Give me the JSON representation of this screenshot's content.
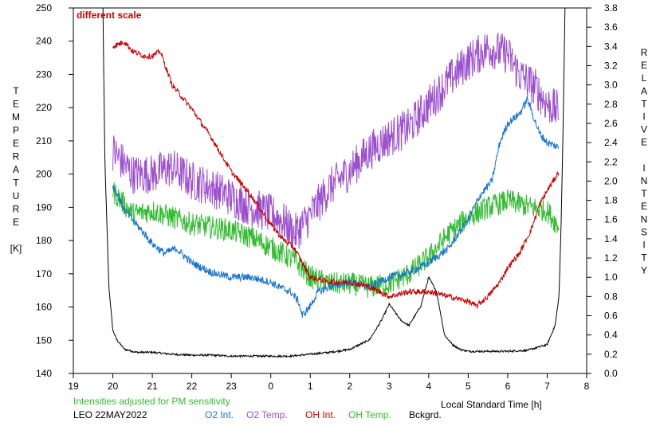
{
  "chart_data": {
    "type": "line",
    "annotation": "different scale",
    "footer": {
      "note": "Intensities adjusted for PM sensitivity",
      "station_date": "LEO 22MAY2022"
    },
    "xlabel": "Local Standard Time [h]",
    "x_ticks": [
      "19",
      "20",
      "21",
      "22",
      "23",
      "0",
      "1",
      "2",
      "3",
      "4",
      "5",
      "6",
      "7",
      "8"
    ],
    "xlim": [
      19,
      32
    ],
    "ylabel_left": [
      "T",
      "E",
      "M",
      "P",
      "E",
      "R",
      "A",
      "T",
      "U",
      "R",
      "E",
      "",
      "[K]"
    ],
    "ylim_left": [
      140,
      250
    ],
    "y_ticks_left": [
      "140",
      "150",
      "160",
      "170",
      "180",
      "190",
      "200",
      "210",
      "220",
      "230",
      "240",
      "250"
    ],
    "ylabel_right": [
      "R",
      "E",
      "L",
      "A",
      "T",
      "I",
      "V",
      "E",
      "",
      "I",
      "N",
      "T",
      "E",
      "N",
      "S",
      "I",
      "T",
      "Y"
    ],
    "ylim_right": [
      0.0,
      3.8
    ],
    "y_ticks_right": [
      "0.0",
      "0.2",
      "0.4",
      "0.6",
      "0.8",
      "1.0",
      "1.2",
      "1.4",
      "1.6",
      "1.8",
      "2.0",
      "2.2",
      "2.4",
      "2.6",
      "2.8",
      "3.0",
      "3.2",
      "3.4",
      "3.6",
      "3.8"
    ],
    "colors": {
      "o2_int": "#1874CD",
      "o2_temp": "#9B4FCF",
      "oh_int": "#CC0000",
      "oh_temp": "#33BB33",
      "bckgrd": "#000000",
      "annotation": "#CC0000",
      "note": "#33BB33"
    },
    "series": [
      {
        "name": "O2 Int.",
        "key": "o2_int",
        "axis": "right",
        "noise": 0.04,
        "x": [
          20.0,
          20.3,
          20.6,
          20.8,
          21.0,
          21.3,
          21.6,
          22.0,
          22.5,
          23.0,
          23.5,
          24.0,
          24.2,
          24.5,
          24.7,
          24.8,
          25.0,
          25.2,
          25.5,
          26.0,
          26.5,
          27.0,
          27.5,
          28.0,
          28.5,
          29.0,
          29.3,
          29.6,
          29.8,
          30.0,
          30.3,
          30.5,
          30.8,
          31.0,
          31.3
        ],
        "y": [
          1.95,
          1.7,
          1.55,
          1.45,
          1.35,
          1.25,
          1.3,
          1.15,
          1.05,
          1.0,
          1.0,
          0.95,
          0.9,
          0.85,
          0.75,
          0.6,
          0.7,
          0.85,
          0.9,
          0.95,
          0.9,
          1.0,
          1.05,
          1.15,
          1.3,
          1.6,
          1.85,
          2.0,
          2.4,
          2.6,
          2.7,
          2.85,
          2.5,
          2.4,
          2.35
        ]
      },
      {
        "name": "O2 Temp.",
        "key": "o2_temp",
        "axis": "left",
        "noise": 6,
        "x": [
          20.0,
          20.5,
          21.0,
          21.5,
          22.0,
          22.5,
          23.0,
          23.5,
          24.0,
          24.3,
          24.6,
          24.9,
          25.2,
          25.5,
          26.0,
          26.5,
          27.0,
          27.5,
          28.0,
          28.5,
          29.0,
          29.5,
          30.0,
          30.3,
          30.7,
          31.0,
          31.3
        ],
        "y": [
          207,
          200,
          200,
          202,
          198,
          196,
          193,
          190,
          188,
          186,
          182,
          186,
          191,
          196,
          201,
          207,
          211,
          214,
          221,
          228,
          234,
          238,
          236,
          230,
          226,
          221,
          219
        ]
      },
      {
        "name": "OH Int.",
        "key": "oh_int",
        "axis": "right",
        "noise": 0.03,
        "x": [
          20.0,
          20.3,
          20.5,
          20.8,
          21.0,
          21.2,
          21.5,
          22.0,
          22.5,
          23.0,
          23.5,
          24.0,
          24.3,
          24.6,
          25.0,
          25.5,
          26.0,
          26.5,
          27.0,
          27.5,
          28.0,
          28.5,
          29.0,
          29.2,
          29.5,
          29.8,
          30.0,
          30.3,
          30.6,
          30.8,
          31.0,
          31.3
        ],
        "y": [
          3.4,
          3.45,
          3.35,
          3.3,
          3.3,
          3.35,
          3.0,
          2.75,
          2.45,
          2.1,
          1.85,
          1.55,
          1.4,
          1.3,
          1.0,
          0.95,
          0.95,
          0.9,
          0.8,
          0.85,
          0.85,
          0.8,
          0.75,
          0.7,
          0.8,
          0.95,
          1.1,
          1.25,
          1.5,
          1.75,
          1.9,
          2.1
        ]
      },
      {
        "name": "OH Temp.",
        "key": "oh_temp",
        "axis": "left",
        "noise": 3.5,
        "x": [
          20.0,
          20.5,
          21.0,
          21.5,
          22.0,
          22.5,
          23.0,
          23.5,
          24.0,
          24.3,
          24.6,
          25.0,
          25.5,
          26.0,
          26.5,
          27.0,
          27.5,
          28.0,
          28.5,
          29.0,
          29.5,
          30.0,
          30.3,
          30.6,
          31.0,
          31.3
        ],
        "y": [
          195,
          188,
          189,
          187,
          185,
          184,
          183,
          181,
          178,
          176,
          174,
          169,
          167,
          167,
          166,
          167,
          170,
          175,
          182,
          187,
          190,
          192,
          191,
          190,
          189,
          184
        ]
      },
      {
        "name": "Bckgrd.",
        "key": "bckgrd",
        "axis": "right",
        "noise": 0.01,
        "x": [
          19.75,
          19.8,
          19.9,
          20.0,
          20.1,
          20.3,
          20.6,
          21.0,
          21.5,
          22.0,
          22.5,
          23.0,
          23.5,
          24.0,
          24.5,
          25.0,
          25.5,
          26.0,
          26.5,
          26.8,
          27.0,
          27.3,
          27.5,
          27.8,
          28.0,
          28.2,
          28.4,
          28.6,
          28.8,
          29.0,
          29.5,
          30.0,
          30.5,
          31.0,
          31.2,
          31.3,
          31.35,
          31.4,
          31.45
        ],
        "y": [
          3.8,
          2.2,
          0.9,
          0.45,
          0.35,
          0.25,
          0.22,
          0.22,
          0.2,
          0.19,
          0.19,
          0.18,
          0.18,
          0.18,
          0.18,
          0.2,
          0.22,
          0.25,
          0.35,
          0.55,
          0.72,
          0.55,
          0.5,
          0.7,
          1.0,
          0.85,
          0.4,
          0.3,
          0.25,
          0.23,
          0.23,
          0.23,
          0.24,
          0.3,
          0.5,
          0.8,
          1.5,
          2.5,
          3.8
        ]
      }
    ]
  }
}
